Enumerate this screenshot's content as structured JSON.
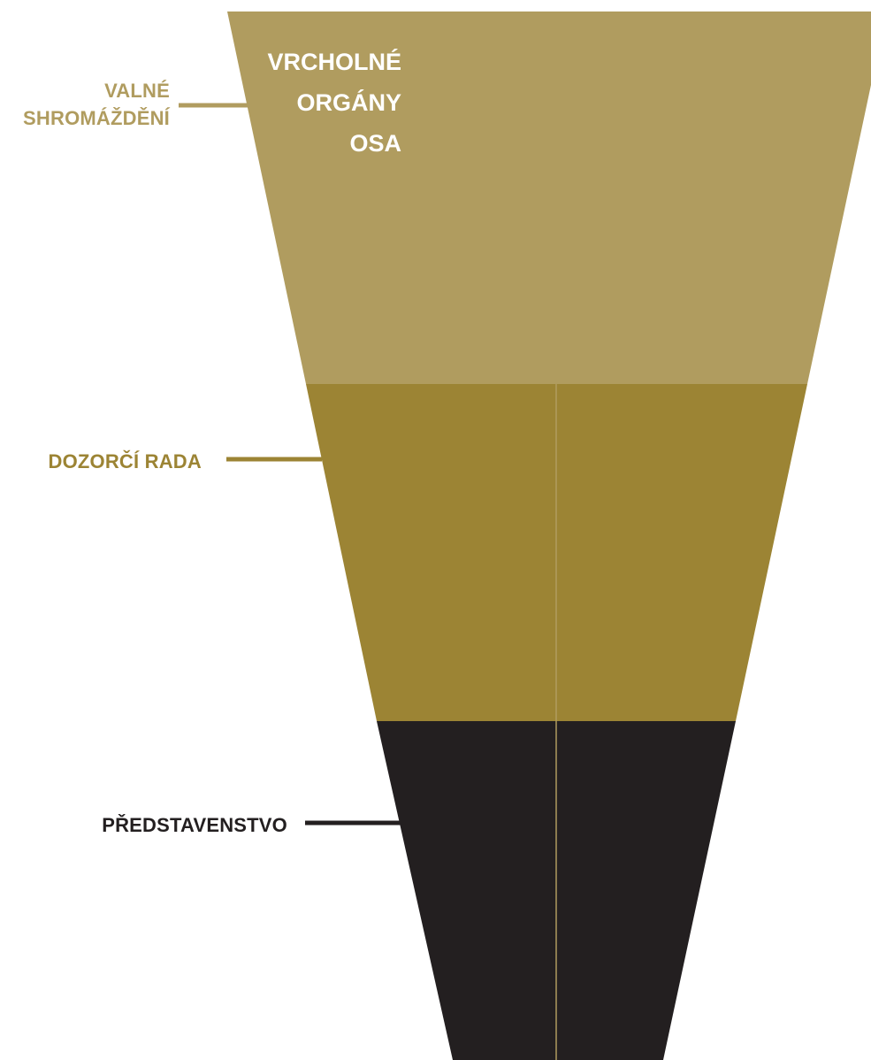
{
  "title": {
    "lines": [
      "VRCHOLNÉ",
      "ORGÁNY",
      "OSA"
    ]
  },
  "levels": [
    {
      "id": "valne-shromazdeni",
      "lines": [
        "VALNÉ",
        "SHROMÁŽDĚNÍ"
      ],
      "color": "#B09C5F"
    },
    {
      "id": "dozorci-rada",
      "lines": [
        "DOZORČÍ RADA"
      ],
      "color": "#9C8434"
    },
    {
      "id": "predstavenstvo",
      "lines": [
        "PŘEDSTAVENSTVO"
      ],
      "color": "#231F20"
    }
  ],
  "colors": {
    "title_text": "#FFFFFF",
    "divider": "#B09C5F"
  }
}
